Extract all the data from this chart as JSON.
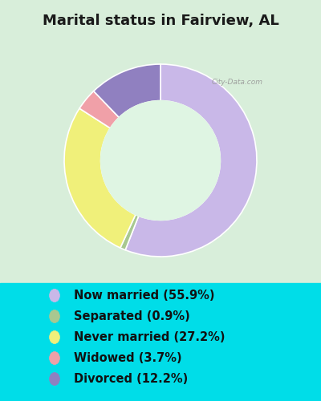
{
  "title": "Marital status in Fairview, AL",
  "slices": [
    {
      "label": "Now married (55.9%)",
      "value": 55.9,
      "color": "#C9B8E8"
    },
    {
      "label": "Separated (0.9%)",
      "value": 0.9,
      "color": "#A8C890"
    },
    {
      "label": "Never married (27.2%)",
      "value": 27.2,
      "color": "#F0F07A"
    },
    {
      "label": "Widowed (3.7%)",
      "value": 3.7,
      "color": "#F0A0A8"
    },
    {
      "label": "Divorced (12.2%)",
      "value": 12.2,
      "color": "#9080C0"
    }
  ],
  "bg_top": "#d8eeda",
  "bg_bottom": "#00dde8",
  "donut_inner_color": "#dff5e3",
  "watermark": "City-Data.com",
  "title_fontsize": 13,
  "legend_fontsize": 10.5,
  "legend_circle_color_now_married": "#C9B8E8",
  "legend_circle_color_separated": "#A8C890",
  "legend_circle_color_never_married": "#F0F07A",
  "legend_circle_color_widowed": "#F0A0A8",
  "legend_circle_color_divorced": "#9080C0"
}
